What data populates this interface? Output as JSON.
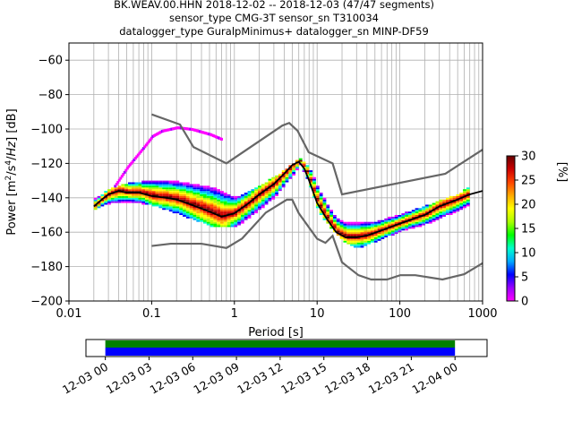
{
  "title_lines": [
    "BK.WEAV.00.HHN   2018-12-02 -- 2018-12-03  (47/47 segments)",
    "sensor_type CMG-3T sensor_sn T310034",
    "datalogger_type GuralpMinimus+ datalogger_sn MINP-DF59"
  ],
  "colorbar_colors": [
    "#ff00ff",
    "#9900ff",
    "#0000ff",
    "#00aaff",
    "#00ffcc",
    "#00ff00",
    "#aaff00",
    "#ffff00",
    "#ffaa00",
    "#ff4400",
    "#cc0000",
    "#660000"
  ],
  "chart_data": {
    "type": "heatmap",
    "xlabel": "Period [s]",
    "ylabel": "Power [m²/s⁴/Hz] [dB]",
    "xscale": "log",
    "xlim": [
      0.01,
      1000
    ],
    "ylim": [
      -200,
      -50
    ],
    "xticks": [
      {
        "v": 0.01,
        "label": "0.01"
      },
      {
        "v": 0.1,
        "label": "0.1"
      },
      {
        "v": 1,
        "label": "1"
      },
      {
        "v": 10,
        "label": "10"
      },
      {
        "v": 100,
        "label": "100"
      },
      {
        "v": 1000,
        "label": "1000"
      }
    ],
    "yticks": [
      {
        "v": -60,
        "label": "−60"
      },
      {
        "v": -80,
        "label": "−80"
      },
      {
        "v": -100,
        "label": "−100"
      },
      {
        "v": -120,
        "label": "−120"
      },
      {
        "v": -140,
        "label": "−140"
      },
      {
        "v": -160,
        "label": "−160"
      },
      {
        "v": -180,
        "label": "−180"
      },
      {
        "v": -200,
        "label": "−200"
      }
    ],
    "grid": true,
    "model_curves": [
      {
        "name": "high-noise-model",
        "x": [
          0.1,
          0.22,
          0.32,
          0.8,
          3.8,
          4.6,
          5.8,
          7.9,
          15.4,
          20,
          354.8,
          1000
        ],
        "y": [
          -91.5,
          -97.4,
          -110.5,
          -120,
          -98.0,
          -96.5,
          -101,
          -113.5,
          -120,
          -138,
          -126,
          -112
        ]
      },
      {
        "name": "low-noise-model",
        "x": [
          0.1,
          0.17,
          0.4,
          0.8,
          1.24,
          2.4,
          4.3,
          5.0,
          6.0,
          10,
          12.6,
          15.4,
          20,
          21.9,
          31.6,
          45,
          70,
          101,
          154,
          328,
          600,
          1000
        ],
        "y": [
          -168,
          -166.7,
          -166.7,
          -169.2,
          -163.7,
          -148.6,
          -141.1,
          -141.1,
          -149,
          -163.8,
          -166.2,
          -162.1,
          -177.5,
          -179,
          -185,
          -187.5,
          -187.5,
          -185,
          -185,
          -187.5,
          -184.4,
          -178
        ]
      }
    ],
    "mode_curve": {
      "x": [
        0.02,
        0.025,
        0.03,
        0.04,
        0.05,
        0.07,
        0.1,
        0.15,
        0.2,
        0.3,
        0.5,
        0.7,
        1,
        1.5,
        2,
        3,
        4,
        5,
        6,
        7,
        8,
        10,
        13,
        17,
        22,
        30,
        40,
        60,
        100,
        150,
        200,
        300,
        500,
        700,
        1000
      ],
      "y": [
        -145,
        -141,
        -138,
        -136,
        -137,
        -137,
        -139,
        -140,
        -141,
        -144,
        -148,
        -151,
        -149,
        -143,
        -138,
        -132,
        -126,
        -121,
        -119,
        -123,
        -130,
        -143,
        -152,
        -160,
        -163,
        -163,
        -162,
        -159,
        -155,
        -152,
        -150,
        -145,
        -141,
        -138,
        -136
      ]
    },
    "psd_band": {
      "x": [
        0.02,
        0.03,
        0.05,
        0.1,
        0.2,
        0.5,
        1,
        2,
        3,
        5,
        6,
        8,
        10,
        15,
        20,
        30,
        50,
        100,
        200,
        500,
        700
      ],
      "upper": [
        -141,
        -135,
        -132,
        -130,
        -131,
        -134,
        -140,
        -133,
        -128,
        -120,
        -117,
        -124,
        -135,
        -150,
        -155,
        -155,
        -154,
        -150,
        -145,
        -138,
        -133
      ],
      "lower": [
        -147,
        -144,
        -143,
        -145,
        -150,
        -157,
        -158,
        -147,
        -140,
        -127,
        -121,
        -134,
        -149,
        -160,
        -166,
        -170,
        -166,
        -160,
        -156,
        -148,
        -144
      ]
    },
    "outlier_arc": {
      "x": [
        0.035,
        0.05,
        0.08,
        0.1,
        0.13,
        0.2,
        0.3,
        0.5,
        0.7
      ],
      "y": [
        -133,
        -122,
        -110,
        -104,
        -101,
        -99,
        -100,
        -103,
        -106
      ]
    },
    "colorbar": {
      "label": "[%]",
      "range": [
        0,
        30
      ],
      "ticks": [
        0,
        5,
        10,
        15,
        20,
        25,
        30
      ]
    },
    "timeline": {
      "xlim": [
        "2018-12-02 22:40",
        "2018-12-04 00:50"
      ],
      "coverage_start": "2018-12-03 00:00",
      "coverage_end": "2018-12-04 00:00",
      "tick_labels": [
        "12-03 00",
        "12-03 03",
        "12-03 06",
        "12-03 09",
        "12-03 12",
        "12-03 15",
        "12-03 18",
        "12-03 21",
        "12-04 00"
      ],
      "tick_hours": [
        0,
        3,
        6,
        9,
        12,
        15,
        18,
        21,
        24
      ],
      "range_hours": [
        -1.33,
        26.2
      ],
      "bar_colors": [
        "#008000",
        "#0000ff"
      ]
    }
  }
}
